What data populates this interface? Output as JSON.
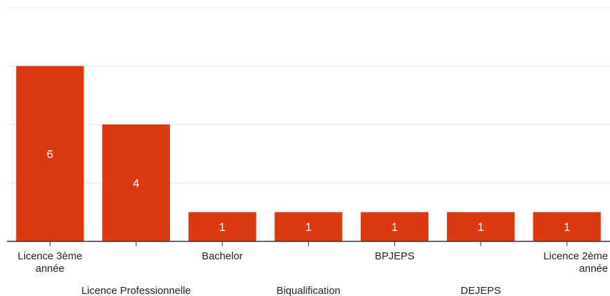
{
  "chart_data": {
    "type": "bar",
    "categories": [
      [
        "Licence 3ème",
        "année"
      ],
      [
        "Licence Professionnelle"
      ],
      [
        "Bachelor"
      ],
      [
        "Biqualification"
      ],
      [
        "BPJEPS"
      ],
      [
        "DEJEPS"
      ],
      [
        "Licence 2ème",
        "année"
      ]
    ],
    "values": [
      6,
      4,
      1,
      1,
      1,
      1,
      1
    ],
    "data_labels": [
      "6",
      "4",
      "1",
      "1",
      "1",
      "1",
      "1"
    ],
    "ylim": [
      0,
      8
    ],
    "gridlines": [
      2,
      4,
      6,
      8
    ],
    "grid": true,
    "bar_color": "#dc3912",
    "grid_color": "#e5e5e5",
    "axis_color": "#333333"
  }
}
